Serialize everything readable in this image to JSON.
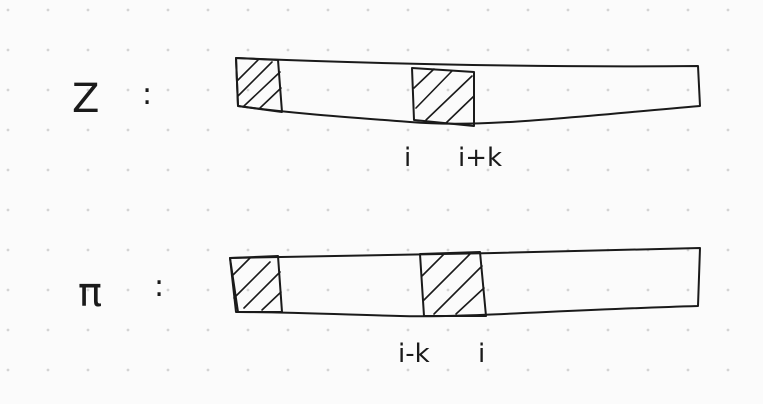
{
  "diagram": {
    "background_color": "#fbfbfb",
    "ink_color": "#1a1a1a",
    "dot_color": "#d4d4d4",
    "rows": [
      {
        "label": "Z",
        "colon": ":",
        "index_labels": [
          "i",
          "i+k"
        ]
      },
      {
        "label": "π",
        "colon": ":",
        "index_labels": [
          "i-k",
          "i"
        ]
      }
    ]
  }
}
